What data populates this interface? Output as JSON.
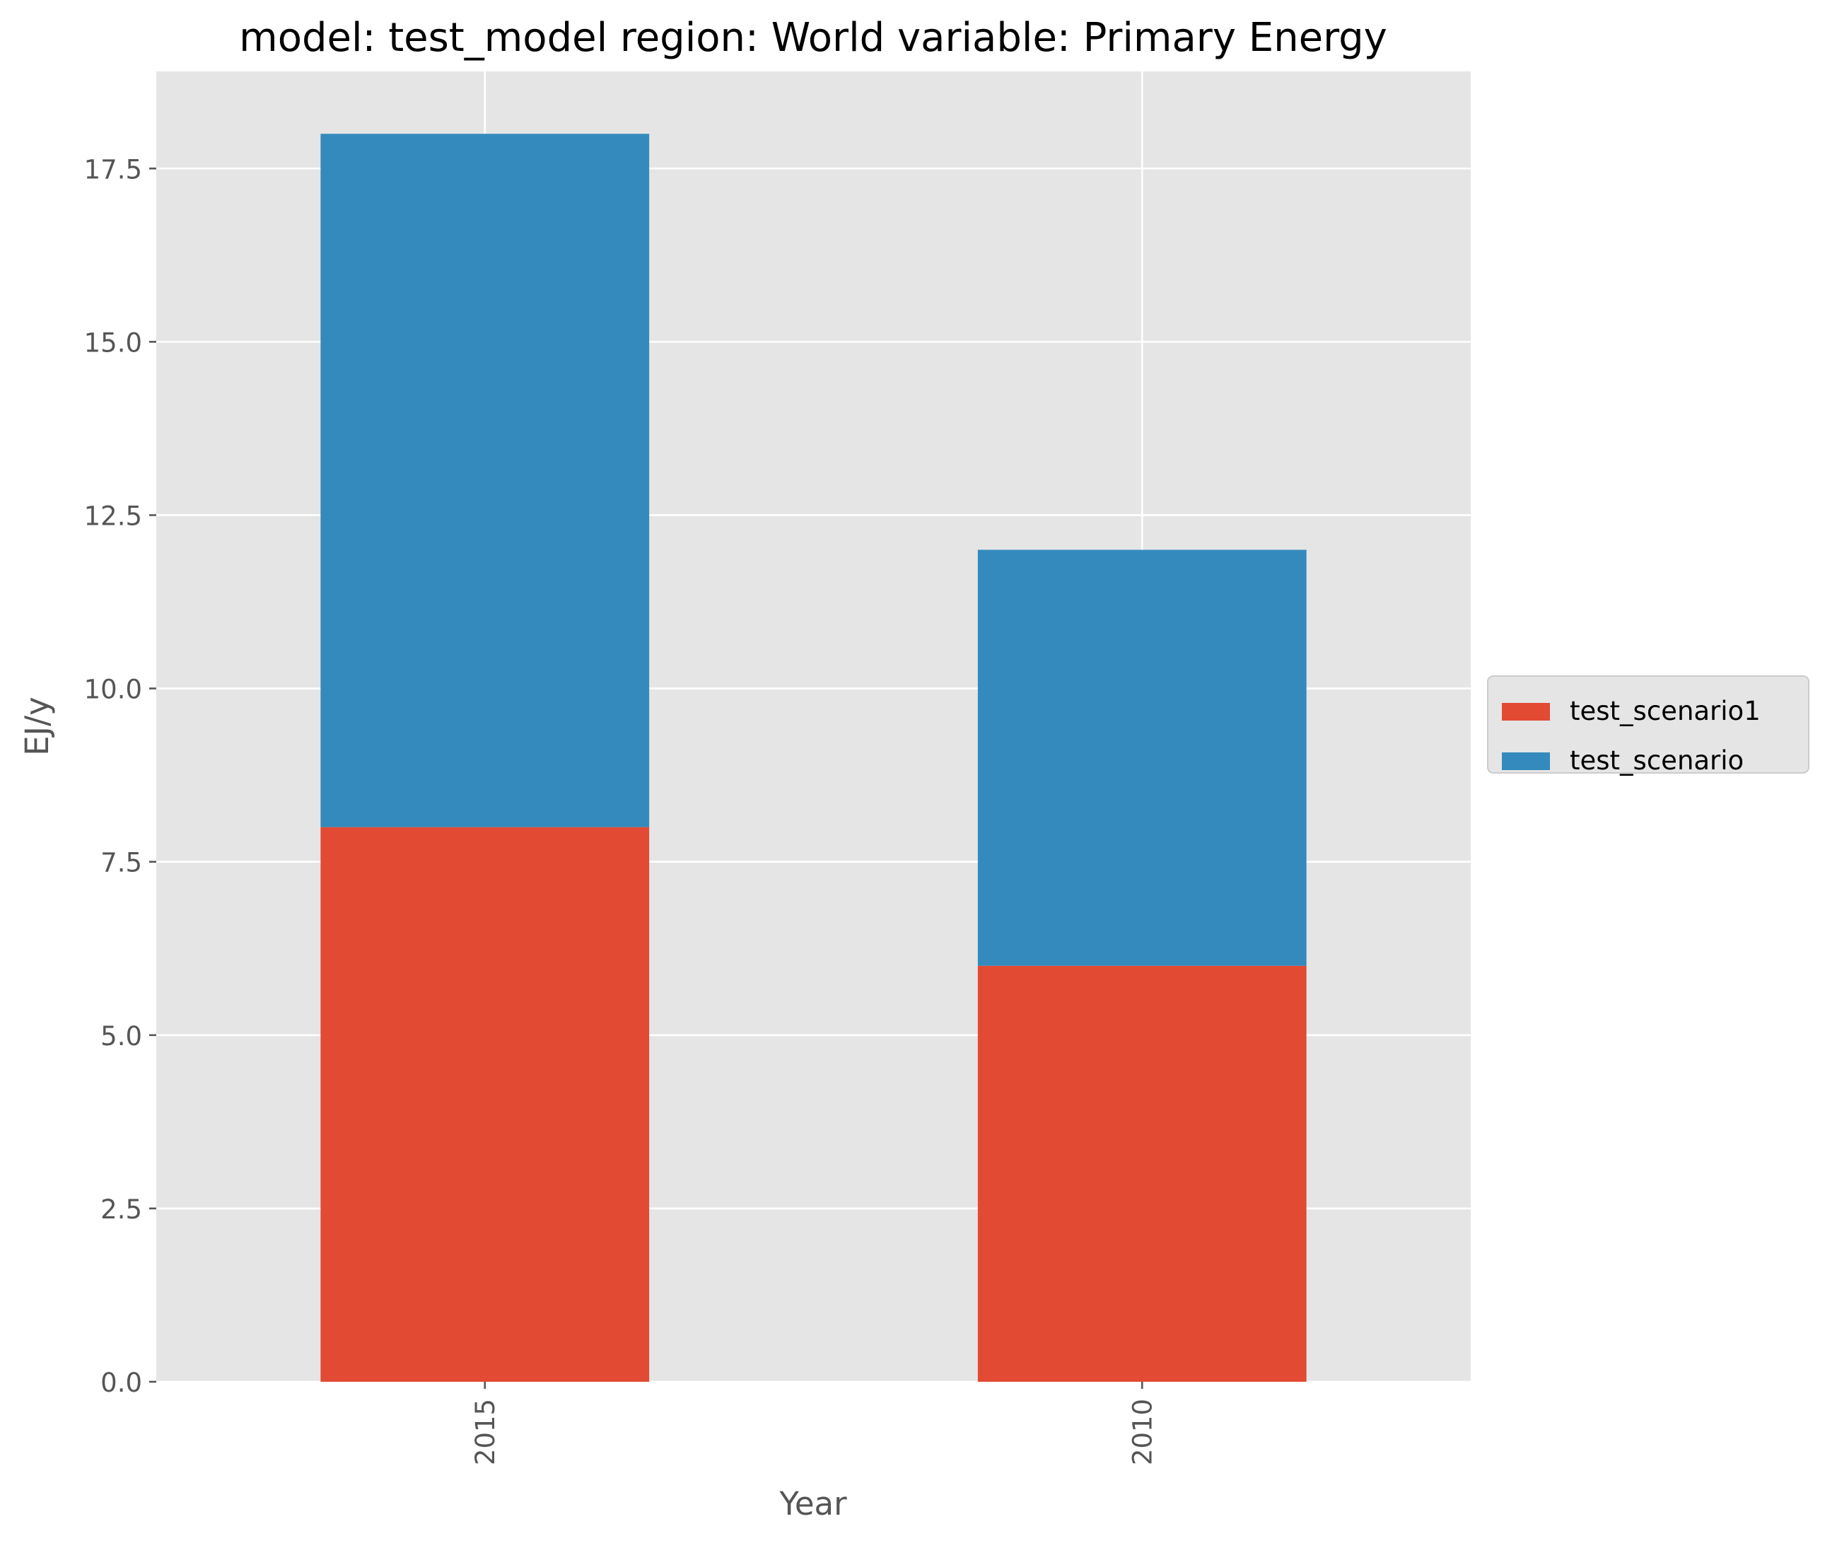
{
  "chart_data": {
    "type": "bar",
    "stacked": true,
    "title": "model: test_model region: World variable: Primary Energy",
    "xlabel": "Year",
    "ylabel": "EJ/y",
    "categories": [
      "2015",
      "2010"
    ],
    "ylim": [
      0,
      18.9
    ],
    "yticks": [
      0.0,
      2.5,
      5.0,
      7.5,
      10.0,
      12.5,
      15.0,
      17.5
    ],
    "ytick_labels": [
      "0.0",
      "2.5",
      "5.0",
      "7.5",
      "10.0",
      "12.5",
      "15.0",
      "17.5"
    ],
    "grid": true,
    "legend_position": "center-right, outside plot",
    "series": [
      {
        "name": "test_scenario1",
        "values": [
          8,
          6
        ],
        "color": "#E24A33"
      },
      {
        "name": "test_scenario",
        "values": [
          10,
          6
        ],
        "color": "#348ABD"
      }
    ],
    "style": {
      "background": "#E5E5E5",
      "grid_color": "#FFFFFF",
      "text_color": "#555555",
      "title_color": "#000000"
    }
  }
}
